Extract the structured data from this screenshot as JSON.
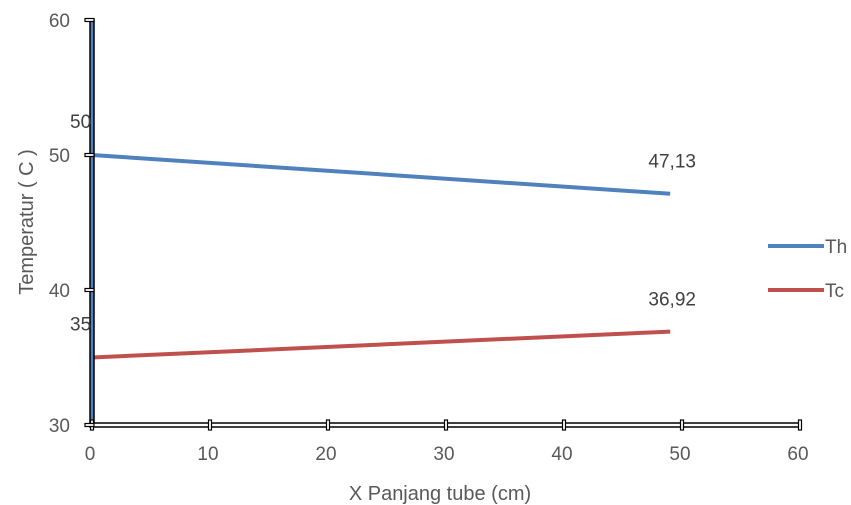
{
  "chart_data": {
    "type": "line",
    "xlabel": "X Panjang tube (cm)",
    "ylabel": "Temperatur ( C )",
    "xlim": [
      0,
      60
    ],
    "ylim": [
      30,
      60
    ],
    "x_ticks": [
      "0",
      "10",
      "20",
      "30",
      "40",
      "50",
      "60"
    ],
    "y_ticks": [
      "30",
      "40",
      "50",
      "60"
    ],
    "grid": false,
    "legend_position": "right",
    "series": [
      {
        "name": "Th",
        "color": "#4f81bd",
        "x": [
          0,
          49
        ],
        "y": [
          50,
          47.13
        ],
        "labels": [
          {
            "text": "50",
            "x": 0,
            "y": 50
          },
          {
            "text": "47,13",
            "x": 49,
            "y": 47.13
          }
        ]
      },
      {
        "name": "Tc",
        "color": "#c0504d",
        "x": [
          0,
          49
        ],
        "y": [
          35,
          36.92
        ],
        "labels": [
          {
            "text": "35",
            "x": 0,
            "y": 35
          },
          {
            "text": "36,92",
            "x": 49,
            "y": 36.92
          }
        ]
      }
    ]
  }
}
